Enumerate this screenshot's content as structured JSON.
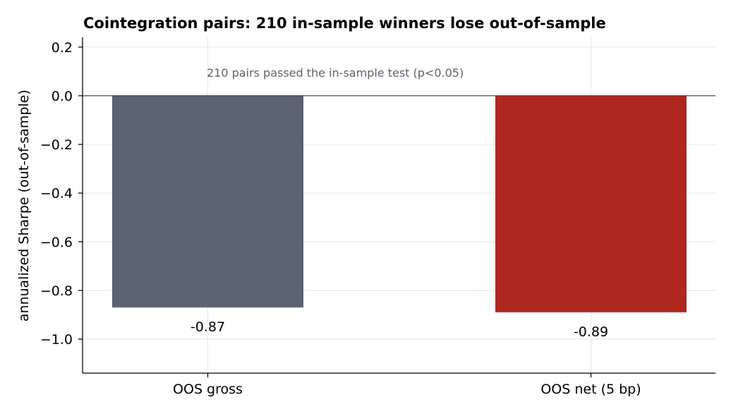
{
  "chart_data": {
    "type": "bar",
    "title": "Cointegration pairs: 210 in-sample winners lose out-of-sample",
    "xlabel": "",
    "ylabel": "annualized Sharpe (out-of-sample)",
    "categories": [
      "OOS gross",
      "OOS net (5 bp)"
    ],
    "values": [
      -0.87,
      -0.89
    ],
    "data_labels": [
      "-0.87",
      "-0.89"
    ],
    "colors": [
      "#5b6270",
      "#b0271f"
    ],
    "ylim": [
      -1.14,
      0.24
    ],
    "yticks": [
      0.2,
      0.0,
      -0.2,
      -0.4,
      -0.6,
      -0.8,
      -1.0
    ],
    "ytick_labels": [
      "0.2",
      "0.0",
      "−0.2",
      "−0.4",
      "−0.6",
      "−0.8",
      "−1.0"
    ],
    "annotation": "210 pairs passed the in-sample test (p<0.05)",
    "grid": true,
    "legend": "none"
  }
}
